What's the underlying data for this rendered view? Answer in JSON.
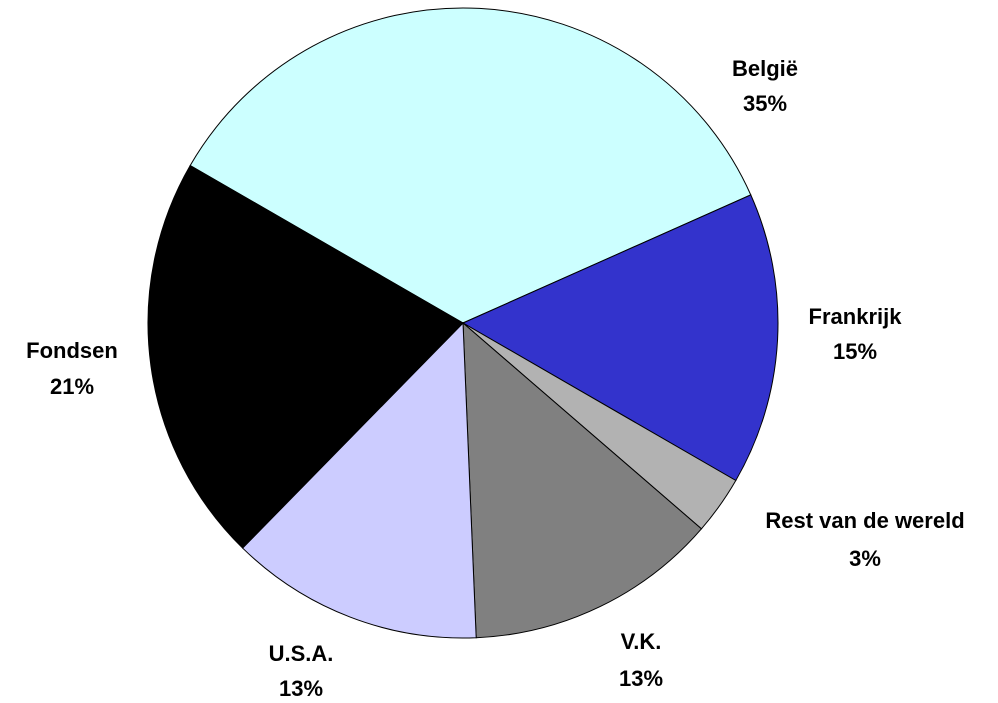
{
  "chart_data": {
    "type": "pie",
    "categories": [
      "België",
      "Frankrijk",
      "Rest van de wereld",
      "V.K.",
      "U.S.A.",
      "Fondsen"
    ],
    "values": [
      35,
      15,
      3,
      13,
      13,
      21
    ],
    "value_labels": [
      "35%",
      "15%",
      "3%",
      "13%",
      "13%",
      "21%"
    ],
    "colors": [
      "#ccffff",
      "#3333cc",
      "#b2b2b2",
      "#808080",
      "#ccccff",
      "#000000"
    ]
  }
}
